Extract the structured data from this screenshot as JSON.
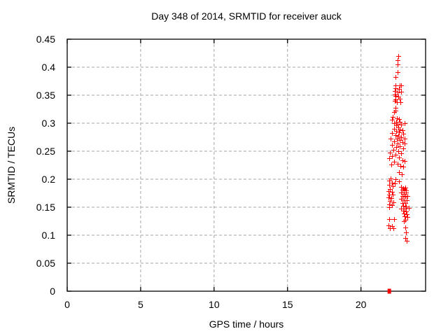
{
  "page": {
    "background": "#ffffff",
    "text_color": "#000000"
  },
  "chart_data": {
    "type": "scatter",
    "title": "Day 348 of 2014, SRMTID for receiver auck",
    "xlabel": "GPS time / hours",
    "ylabel": "SRMTID / TECUs",
    "xlim": [
      0,
      24.4
    ],
    "ylim": [
      0,
      0.45
    ],
    "x_ticks": {
      "values": [
        0,
        5,
        10,
        15,
        20
      ],
      "labels": [
        "0",
        "5",
        "10",
        "15",
        "20"
      ]
    },
    "y_ticks": {
      "values": [
        0,
        0.05,
        0.1,
        0.15,
        0.2,
        0.25,
        0.3,
        0.35,
        0.4,
        0.45
      ],
      "labels": [
        "0",
        "0.05",
        "0.1",
        "0.15",
        "0.2",
        "0.25",
        "0.3",
        "0.35",
        "0.4",
        "0.45"
      ]
    },
    "grid": {
      "show": true,
      "color": "#a6a6a6",
      "dash": "4 3"
    },
    "axis_color": "#000000",
    "legend": "none",
    "series": [
      {
        "name": "SRMTID",
        "marker": "plus",
        "color": "#ff0000",
        "size": 7,
        "points": [
          [
            22.52,
            0.42
          ],
          [
            22.48,
            0.413
          ],
          [
            22.5,
            0.405
          ],
          [
            22.51,
            0.391
          ],
          [
            22.33,
            0.382
          ],
          [
            22.36,
            0.368
          ],
          [
            22.62,
            0.367
          ],
          [
            22.74,
            0.368
          ],
          [
            22.33,
            0.362
          ],
          [
            22.57,
            0.361
          ],
          [
            22.29,
            0.357
          ],
          [
            22.49,
            0.355
          ],
          [
            22.73,
            0.356
          ],
          [
            22.29,
            0.351
          ],
          [
            22.33,
            0.349
          ],
          [
            22.52,
            0.347
          ],
          [
            22.62,
            0.344
          ],
          [
            22.33,
            0.343
          ],
          [
            22.29,
            0.34
          ],
          [
            22.46,
            0.337
          ],
          [
            22.68,
            0.338
          ],
          [
            22.37,
            0.328
          ],
          [
            22.25,
            0.32
          ],
          [
            22.36,
            0.322
          ],
          [
            22.18,
            0.311
          ],
          [
            22.44,
            0.309
          ],
          [
            22.6,
            0.307
          ],
          [
            22.1,
            0.306
          ],
          [
            22.38,
            0.303
          ],
          [
            22.65,
            0.302
          ],
          [
            22.25,
            0.3
          ],
          [
            22.49,
            0.299
          ],
          [
            22.95,
            0.3
          ],
          [
            22.73,
            0.297
          ],
          [
            22.38,
            0.296
          ],
          [
            22.54,
            0.293
          ],
          [
            22.25,
            0.29
          ],
          [
            22.65,
            0.289
          ],
          [
            22.81,
            0.288
          ],
          [
            22.41,
            0.286
          ],
          [
            22.6,
            0.284
          ],
          [
            22.13,
            0.282
          ],
          [
            22.89,
            0.281
          ],
          [
            22.36,
            0.279
          ],
          [
            22.54,
            0.277
          ],
          [
            22.73,
            0.275
          ],
          [
            22.95,
            0.273
          ],
          [
            22.02,
            0.273
          ],
          [
            22.44,
            0.272
          ],
          [
            22.65,
            0.27
          ],
          [
            22.25,
            0.268
          ],
          [
            22.81,
            0.266
          ],
          [
            22.97,
            0.264
          ],
          [
            22.49,
            0.264
          ],
          [
            22.1,
            0.261
          ],
          [
            22.65,
            0.259
          ],
          [
            22.38,
            0.257
          ],
          [
            22.89,
            0.255
          ],
          [
            22.22,
            0.252
          ],
          [
            22.54,
            0.25
          ],
          [
            21.96,
            0.248
          ],
          [
            22.73,
            0.246
          ],
          [
            22.36,
            0.244
          ],
          [
            22.1,
            0.241
          ],
          [
            22.57,
            0.239
          ],
          [
            21.9,
            0.237
          ],
          [
            22.81,
            0.234
          ],
          [
            22.97,
            0.232
          ],
          [
            22.25,
            0.231
          ],
          [
            22.49,
            0.228
          ],
          [
            22.06,
            0.226
          ],
          [
            22.7,
            0.224
          ],
          [
            22.89,
            0.222
          ],
          [
            22.57,
            0.212
          ],
          [
            22.76,
            0.209
          ],
          [
            22.02,
            0.201
          ],
          [
            22.33,
            0.2
          ],
          [
            21.9,
            0.198
          ],
          [
            22.57,
            0.196
          ],
          [
            22.1,
            0.194
          ],
          [
            22.29,
            0.192
          ],
          [
            21.94,
            0.19
          ],
          [
            22.17,
            0.188
          ],
          [
            22.74,
            0.186
          ],
          [
            23.01,
            0.185
          ],
          [
            22.87,
            0.184
          ],
          [
            21.98,
            0.183
          ],
          [
            22.81,
            0.181
          ],
          [
            23.06,
            0.18
          ],
          [
            22.95,
            0.182
          ],
          [
            21.86,
            0.179
          ],
          [
            22.1,
            0.177
          ],
          [
            22.73,
            0.176
          ],
          [
            22.92,
            0.174
          ],
          [
            23.08,
            0.176
          ],
          [
            21.94,
            0.173
          ],
          [
            22.17,
            0.172
          ],
          [
            22.81,
            0.17
          ],
          [
            23.01,
            0.169
          ],
          [
            23.18,
            0.17
          ],
          [
            21.86,
            0.167
          ],
          [
            22.06,
            0.166
          ],
          [
            22.73,
            0.165
          ],
          [
            22.92,
            0.163
          ],
          [
            23.13,
            0.162
          ],
          [
            21.97,
            0.161
          ],
          [
            22.22,
            0.159
          ],
          [
            22.81,
            0.158
          ],
          [
            23.01,
            0.157
          ],
          [
            21.9,
            0.155
          ],
          [
            22.1,
            0.154
          ],
          [
            22.87,
            0.153
          ],
          [
            23.06,
            0.151
          ],
          [
            21.94,
            0.15
          ],
          [
            22.73,
            0.148
          ],
          [
            22.95,
            0.147
          ],
          [
            23.28,
            0.149
          ],
          [
            22.87,
            0.144
          ],
          [
            23.06,
            0.143
          ],
          [
            22.92,
            0.139
          ],
          [
            23.11,
            0.137
          ],
          [
            22.99,
            0.134
          ],
          [
            23.18,
            0.132
          ],
          [
            21.9,
            0.129
          ],
          [
            22.25,
            0.129
          ],
          [
            23.01,
            0.127
          ],
          [
            22.92,
            0.125
          ],
          [
            21.86,
            0.117
          ],
          [
            22.13,
            0.116
          ],
          [
            23.0,
            0.114
          ],
          [
            21.97,
            0.112
          ],
          [
            22.22,
            0.112
          ],
          [
            23.08,
            0.105
          ],
          [
            23.01,
            0.095
          ],
          [
            23.13,
            0.09
          ]
        ]
      }
    ],
    "zero_markers": {
      "shape": "filled-square",
      "color": "#ff0000",
      "width": 5,
      "height": 7,
      "points": [
        [
          21.93,
          0
        ]
      ]
    }
  }
}
